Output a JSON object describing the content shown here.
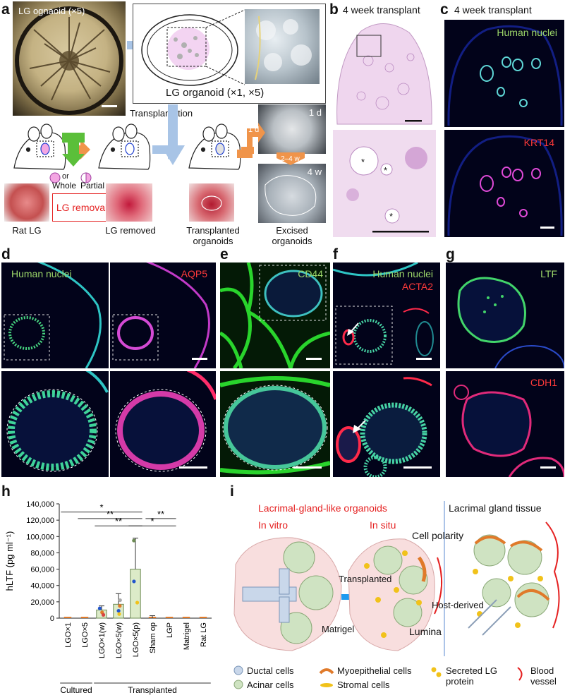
{
  "panels": {
    "a": {
      "label": "a",
      "organoid_photo_caption": "LG ognaoid (×5)",
      "organoid_box_caption": "LG organoid (×1, ×5)",
      "transplantation": "Transplantation",
      "or": "or",
      "whole": "Whole",
      "partial": "Partial",
      "lg_removal": "LG removal",
      "steps": [
        "Rat LG",
        "LG removed",
        "Transplanted organoids",
        "Excised organoids"
      ],
      "time_1d": "1 d",
      "time_2_4w": "2–4 w",
      "time_4w": "4 w",
      "photo_1d": "1 d",
      "photo_4w": "4 w"
    },
    "b": {
      "label": "b",
      "title": "4 week transplant",
      "asterisk": "*"
    },
    "c": {
      "label": "c",
      "title": "4 week transplant",
      "stain1": "Human nuclei",
      "stain2": "KRT14"
    },
    "d": {
      "label": "d",
      "stain1": "Human nuclei",
      "stain2": "AQP5"
    },
    "e": {
      "label": "e",
      "stain1": "CD44"
    },
    "f": {
      "label": "f",
      "stain1": "Human nuclei",
      "stain2": "ACTA2"
    },
    "g": {
      "label": "g",
      "stain1": "LTF",
      "stain2": "CDH1"
    },
    "h": {
      "label": "h"
    },
    "i": {
      "label": "i",
      "title_left": "Lacrimal-gland-like organoids",
      "in_vitro": "In vitro",
      "in_situ": "In situ",
      "title_right": "Lacrimal gland tissue",
      "transplanted": "Transplanted",
      "cell_polarity": "Cell polarity",
      "host_derived": "Host-derived",
      "matrigel": "Matrigel",
      "lumina": "Lumina",
      "legend": {
        "ductal": "Ductal cells",
        "acinar": "Acinar cells",
        "myoepithelial": "Myoepithelial cells",
        "stromal": "Stromal cells",
        "secreted": "Secreted LG protein",
        "blood": "Blood vessel"
      }
    }
  },
  "colors": {
    "accent_blue": "#1e9bf0",
    "removal_red": "#e52222",
    "arrow_orange": "#f0944a",
    "arrow_green": "#5bbf3a",
    "arrow_lightblue": "#a8c4e6"
  },
  "chart_data": {
    "type": "bar",
    "ylabel": "hLTF (pg ml⁻¹)",
    "ylim": [
      0,
      140000
    ],
    "yticks": [
      "0",
      "20,000",
      "40,000",
      "60,000",
      "80,000",
      "100,000",
      "120,000",
      "140,000"
    ],
    "categories": [
      "LGO×1",
      "LGO×5",
      "LGO×1(w)",
      "LGO×5(w)",
      "LGO×5(p)",
      "Sham op",
      "LGP",
      "Matrigel",
      "Rat LG"
    ],
    "values": [
      0,
      0,
      10000,
      17000,
      60000,
      0,
      0,
      0,
      0
    ],
    "errors": [
      0,
      0,
      5000,
      13000,
      38000,
      3000,
      0,
      0,
      0
    ],
    "groups": [
      {
        "name": "Cultured",
        "from": 0,
        "to": 1
      },
      {
        "name": "Transplanted",
        "from": 2,
        "to": 8
      }
    ],
    "significance": [
      {
        "label": "*",
        "from": 0,
        "to": 4,
        "y": 130000
      },
      {
        "label": "**",
        "from": 1,
        "to": 4,
        "y": 122000
      },
      {
        "label": "**",
        "from": 5,
        "to": 6,
        "y": 122000
      },
      {
        "label": "**",
        "from": 2,
        "to": 4,
        "y": 113000
      },
      {
        "label": "*",
        "from": 4,
        "to": 6,
        "y": 113000
      }
    ]
  }
}
